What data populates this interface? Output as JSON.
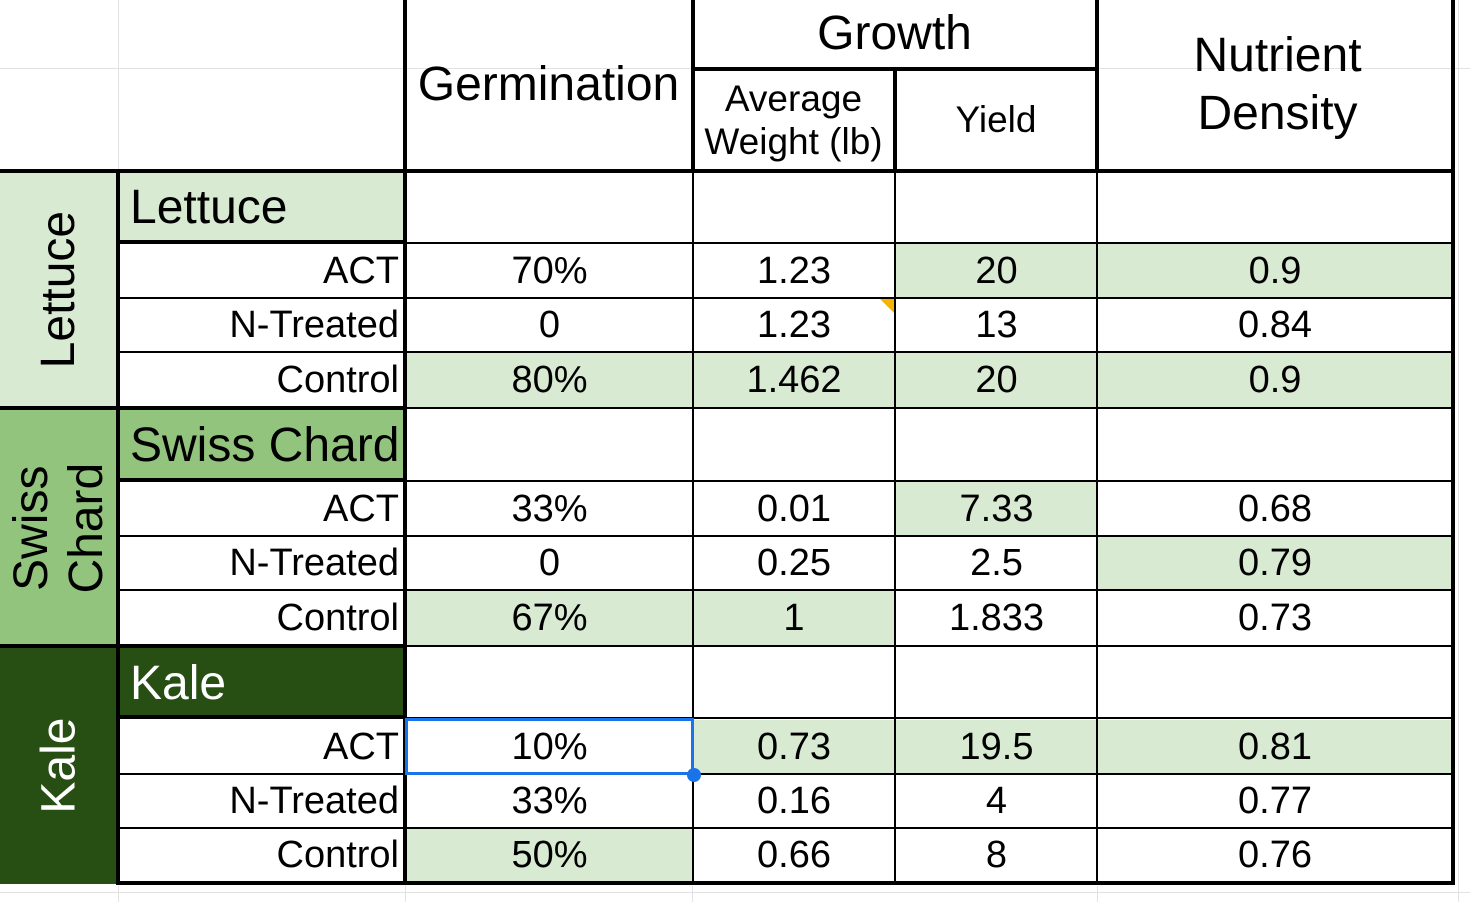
{
  "colors": {
    "light_green": "#d9ead3",
    "mid_green": "#93c47d",
    "dark_green": "#274e13",
    "selection": "#1a73e8",
    "note": "#f4b400"
  },
  "headers": {
    "germination": "Germination",
    "growth": "Growth",
    "average_weight": "Average Weight (lb)",
    "yield": "Yield",
    "nutrient_density": "Nutrient Density"
  },
  "groups": [
    {
      "name": "Lettuce",
      "side_label": "Lettuce",
      "rows": [
        {
          "label": "ACT",
          "germination": "70%",
          "weight": "1.23",
          "yield": "20",
          "nutrient": "0.9"
        },
        {
          "label": "N-Treated",
          "germination": "0",
          "weight": "1.23",
          "yield": "13",
          "nutrient": "0.84"
        },
        {
          "label": "Control",
          "germination": "80%",
          "weight": "1.462",
          "yield": "20",
          "nutrient": "0.9"
        }
      ]
    },
    {
      "name": "Swiss Chard",
      "side_label": "Swiss Chard",
      "rows": [
        {
          "label": "ACT",
          "germination": "33%",
          "weight": "0.01",
          "yield": "7.33",
          "nutrient": "0.68"
        },
        {
          "label": "N-Treated",
          "germination": "0",
          "weight": "0.25",
          "yield": "2.5",
          "nutrient": "0.79"
        },
        {
          "label": "Control",
          "germination": "67%",
          "weight": "1",
          "yield": "1.833",
          "nutrient": "0.73"
        }
      ]
    },
    {
      "name": "Kale",
      "side_label": "Kale",
      "rows": [
        {
          "label": "ACT",
          "germination": "10%",
          "weight": "0.73",
          "yield": "19.5",
          "nutrient": "0.81"
        },
        {
          "label": "N-Treated",
          "germination": "33%",
          "weight": "0.16",
          "yield": "4",
          "nutrient": "0.77"
        },
        {
          "label": "Control",
          "germination": "50%",
          "weight": "0.66",
          "yield": "8",
          "nutrient": "0.76"
        }
      ]
    }
  ]
}
